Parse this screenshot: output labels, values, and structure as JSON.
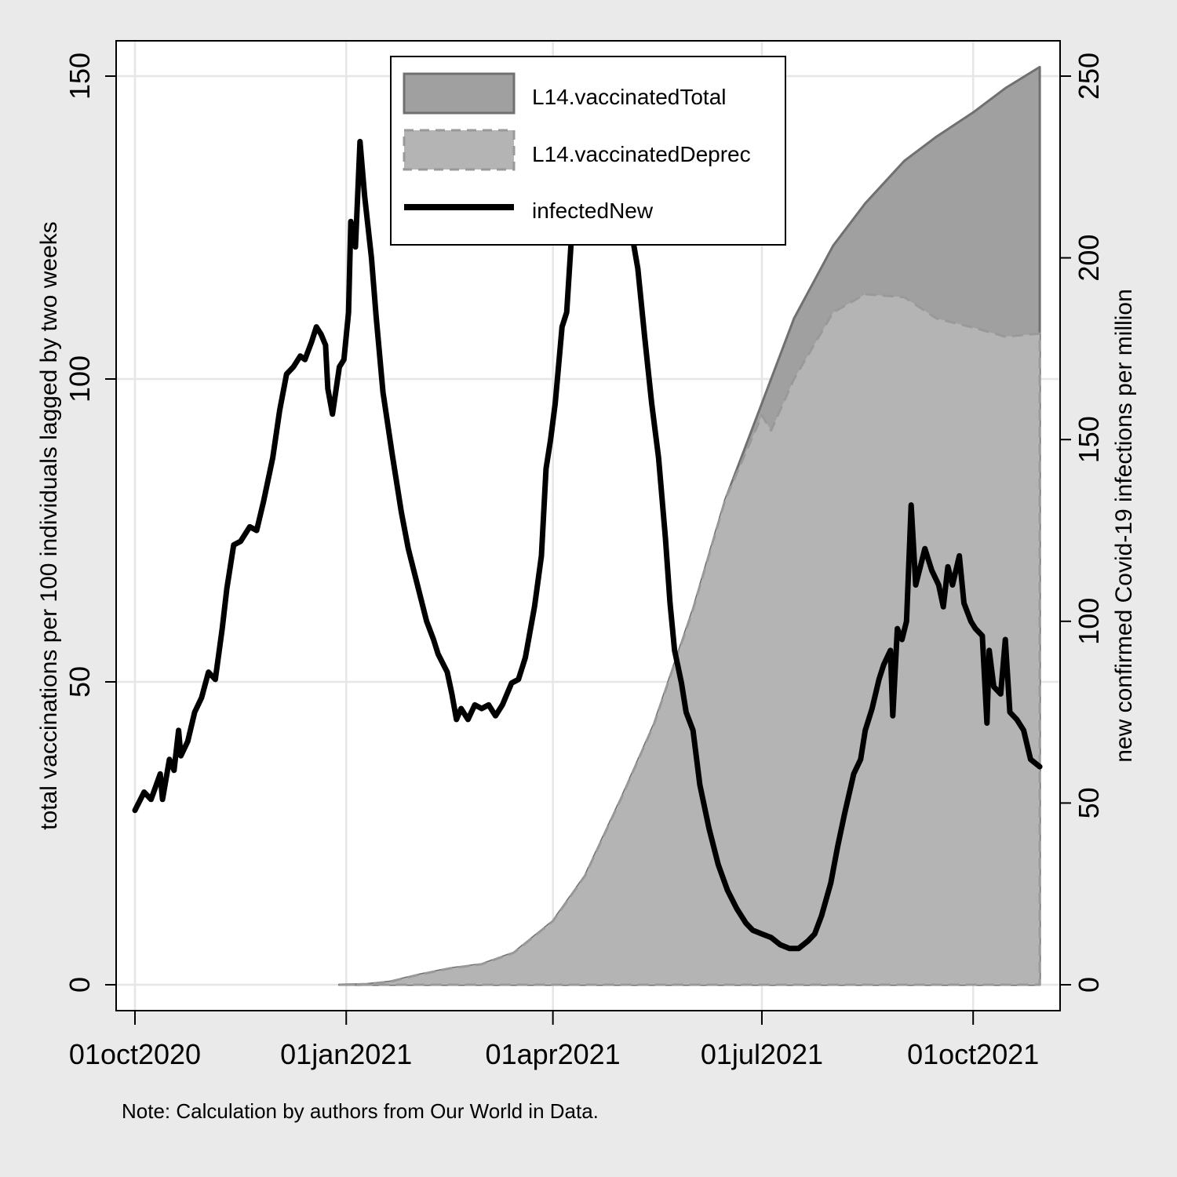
{
  "chart_data": {
    "type": "area",
    "xlabel": "",
    "ylabel_left": "total vaccinations per 100 individuals lagged by two weeks",
    "ylabel_right": "new confirmed Covid-19 infections per million",
    "note": "Note: Calculation by authors from Our World in Data.",
    "xlim": [
      "2020-10-01",
      "2021-10-31"
    ],
    "ylim_left": [
      0,
      150
    ],
    "ylim_right": [
      0,
      250
    ],
    "x_ticks": [
      {
        "date": "2020-10-01",
        "label": "01oct2020"
      },
      {
        "date": "2021-01-01",
        "label": "01jan2021"
      },
      {
        "date": "2021-04-01",
        "label": "01apr2021"
      },
      {
        "date": "2021-07-01",
        "label": "01jul2021"
      },
      {
        "date": "2021-10-01",
        "label": "01oct2021"
      }
    ],
    "y_ticks_left": [
      0,
      50,
      100,
      150
    ],
    "y_ticks_right": [
      0,
      50,
      100,
      150,
      200,
      250
    ],
    "grid": true,
    "legend_position": "top-center",
    "series": [
      {
        "name": "L14.vaccinatedTotal",
        "kind": "area",
        "axis": "left",
        "fill": "#a0a0a0",
        "stroke": "#707070",
        "points": [
          [
            "2020-12-29",
            0
          ],
          [
            "2021-01-10",
            0.1
          ],
          [
            "2021-01-20",
            0.5
          ],
          [
            "2021-02-01",
            1.6
          ],
          [
            "2021-02-15",
            2.7
          ],
          [
            "2021-03-01",
            3.4
          ],
          [
            "2021-03-15",
            5.3
          ],
          [
            "2021-04-01",
            10.5
          ],
          [
            "2021-04-15",
            18
          ],
          [
            "2021-05-01",
            31
          ],
          [
            "2021-05-15",
            43
          ],
          [
            "2021-06-01",
            62
          ],
          [
            "2021-06-15",
            80
          ],
          [
            "2021-07-01",
            96
          ],
          [
            "2021-07-15",
            110
          ],
          [
            "2021-08-01",
            122
          ],
          [
            "2021-08-15",
            129
          ],
          [
            "2021-09-01",
            136
          ],
          [
            "2021-09-15",
            140
          ],
          [
            "2021-10-01",
            144
          ],
          [
            "2021-10-15",
            148
          ],
          [
            "2021-10-30",
            151.5
          ]
        ]
      },
      {
        "name": "L14.vaccinatedDeprec",
        "kind": "area",
        "axis": "left",
        "fill": "#b4b4b4",
        "stroke": "#999999",
        "dashed": true,
        "points": [
          [
            "2020-12-29",
            0
          ],
          [
            "2021-01-10",
            0.1
          ],
          [
            "2021-01-20",
            0.5
          ],
          [
            "2021-02-01",
            1.6
          ],
          [
            "2021-02-15",
            2.7
          ],
          [
            "2021-03-01",
            3.4
          ],
          [
            "2021-03-15",
            5.3
          ],
          [
            "2021-04-01",
            10.5
          ],
          [
            "2021-04-15",
            18
          ],
          [
            "2021-05-01",
            31
          ],
          [
            "2021-05-15",
            43
          ],
          [
            "2021-06-01",
            62
          ],
          [
            "2021-06-15",
            80
          ],
          [
            "2021-07-01",
            94
          ],
          [
            "2021-07-05",
            91.5
          ],
          [
            "2021-07-15",
            100
          ],
          [
            "2021-08-01",
            111
          ],
          [
            "2021-08-15",
            114
          ],
          [
            "2021-09-01",
            113.5
          ],
          [
            "2021-09-15",
            110
          ],
          [
            "2021-10-01",
            108.5
          ],
          [
            "2021-10-15",
            107
          ],
          [
            "2021-10-30",
            107.5
          ]
        ]
      },
      {
        "name": "infectedNew",
        "kind": "line",
        "axis": "right",
        "stroke": "#000000",
        "points": [
          [
            "2020-10-01",
            48
          ],
          [
            "2020-10-05",
            53
          ],
          [
            "2020-10-08",
            51
          ],
          [
            "2020-10-12",
            58
          ],
          [
            "2020-10-13",
            51
          ],
          [
            "2020-10-16",
            62
          ],
          [
            "2020-10-18",
            59
          ],
          [
            "2020-10-20",
            70
          ],
          [
            "2020-10-21",
            63
          ],
          [
            "2020-10-24",
            67
          ],
          [
            "2020-10-27",
            75
          ],
          [
            "2020-10-30",
            79
          ],
          [
            "2020-11-02",
            86
          ],
          [
            "2020-11-05",
            84
          ],
          [
            "2020-11-08",
            98
          ],
          [
            "2020-11-10",
            109
          ],
          [
            "2020-11-13",
            121
          ],
          [
            "2020-11-16",
            122
          ],
          [
            "2020-11-20",
            126
          ],
          [
            "2020-11-23",
            125
          ],
          [
            "2020-11-26",
            133
          ],
          [
            "2020-11-30",
            145
          ],
          [
            "2020-12-03",
            158
          ],
          [
            "2020-12-06",
            168
          ],
          [
            "2020-12-09",
            170
          ],
          [
            "2020-12-12",
            173
          ],
          [
            "2020-12-14",
            172
          ],
          [
            "2020-12-17",
            177
          ],
          [
            "2020-12-19",
            181
          ],
          [
            "2020-12-21",
            179
          ],
          [
            "2020-12-23",
            176
          ],
          [
            "2020-12-24",
            164
          ],
          [
            "2020-12-26",
            157
          ],
          [
            "2020-12-29",
            170
          ],
          [
            "2020-12-31",
            172
          ],
          [
            "2021-01-02",
            185
          ],
          [
            "2021-01-03",
            210
          ],
          [
            "2021-01-05",
            203
          ],
          [
            "2021-01-07",
            232
          ],
          [
            "2021-01-09",
            217
          ],
          [
            "2021-01-12",
            200
          ],
          [
            "2021-01-14",
            184
          ],
          [
            "2021-01-17",
            163
          ],
          [
            "2021-01-21",
            146
          ],
          [
            "2021-01-25",
            130
          ],
          [
            "2021-01-28",
            120
          ],
          [
            "2021-02-01",
            110
          ],
          [
            "2021-02-05",
            100
          ],
          [
            "2021-02-08",
            95
          ],
          [
            "2021-02-10",
            91
          ],
          [
            "2021-02-14",
            86
          ],
          [
            "2021-02-16",
            80
          ],
          [
            "2021-02-18",
            73
          ],
          [
            "2021-02-20",
            76
          ],
          [
            "2021-02-23",
            73
          ],
          [
            "2021-02-26",
            77
          ],
          [
            "2021-03-01",
            76
          ],
          [
            "2021-03-04",
            77
          ],
          [
            "2021-03-07",
            74
          ],
          [
            "2021-03-10",
            77
          ],
          [
            "2021-03-14",
            83
          ],
          [
            "2021-03-17",
            84
          ],
          [
            "2021-03-20",
            90
          ],
          [
            "2021-03-24",
            104
          ],
          [
            "2021-03-27",
            118
          ],
          [
            "2021-03-29",
            142
          ],
          [
            "2021-03-31",
            150
          ],
          [
            "2021-04-02",
            160
          ],
          [
            "2021-04-05",
            181
          ],
          [
            "2021-04-07",
            185
          ],
          [
            "2021-04-09",
            205
          ],
          [
            "2021-04-10",
            212
          ],
          [
            "2021-05-01",
            212
          ],
          [
            "2021-05-05",
            208
          ],
          [
            "2021-05-08",
            197
          ],
          [
            "2021-05-11",
            178
          ],
          [
            "2021-05-14",
            160
          ],
          [
            "2021-05-17",
            145
          ],
          [
            "2021-05-20",
            123
          ],
          [
            "2021-05-22",
            105
          ],
          [
            "2021-05-24",
            92
          ],
          [
            "2021-05-27",
            83
          ],
          [
            "2021-05-29",
            75
          ],
          [
            "2021-06-01",
            70
          ],
          [
            "2021-06-04",
            55
          ],
          [
            "2021-06-08",
            43
          ],
          [
            "2021-06-12",
            33
          ],
          [
            "2021-06-16",
            26
          ],
          [
            "2021-06-20",
            21
          ],
          [
            "2021-06-24",
            17
          ],
          [
            "2021-06-27",
            15
          ],
          [
            "2021-07-01",
            14
          ],
          [
            "2021-07-05",
            13
          ],
          [
            "2021-07-09",
            11
          ],
          [
            "2021-07-13",
            10
          ],
          [
            "2021-07-17",
            10
          ],
          [
            "2021-07-21",
            12
          ],
          [
            "2021-07-24",
            14
          ],
          [
            "2021-07-27",
            19
          ],
          [
            "2021-07-31",
            28
          ],
          [
            "2021-08-03",
            38
          ],
          [
            "2021-08-06",
            47
          ],
          [
            "2021-08-10",
            58
          ],
          [
            "2021-08-13",
            62
          ],
          [
            "2021-08-15",
            70
          ],
          [
            "2021-08-18",
            76
          ],
          [
            "2021-08-21",
            84
          ],
          [
            "2021-08-23",
            88
          ],
          [
            "2021-08-26",
            92
          ],
          [
            "2021-08-27",
            74
          ],
          [
            "2021-08-29",
            98
          ],
          [
            "2021-08-31",
            95
          ],
          [
            "2021-09-02",
            100
          ],
          [
            "2021-09-04",
            132
          ],
          [
            "2021-09-06",
            110
          ],
          [
            "2021-09-10",
            120
          ],
          [
            "2021-09-13",
            114
          ],
          [
            "2021-09-16",
            110
          ],
          [
            "2021-09-18",
            104
          ],
          [
            "2021-09-20",
            115
          ],
          [
            "2021-09-22",
            110
          ],
          [
            "2021-09-25",
            118
          ],
          [
            "2021-09-27",
            105
          ],
          [
            "2021-09-30",
            100
          ],
          [
            "2021-10-02",
            98
          ],
          [
            "2021-10-05",
            96
          ],
          [
            "2021-10-07",
            72
          ],
          [
            "2021-10-08",
            92
          ],
          [
            "2021-10-10",
            82
          ],
          [
            "2021-10-13",
            80
          ],
          [
            "2021-10-15",
            95
          ],
          [
            "2021-10-17",
            75
          ],
          [
            "2021-10-20",
            73
          ],
          [
            "2021-10-23",
            70
          ],
          [
            "2021-10-26",
            62
          ],
          [
            "2021-10-30",
            60
          ]
        ]
      }
    ]
  }
}
